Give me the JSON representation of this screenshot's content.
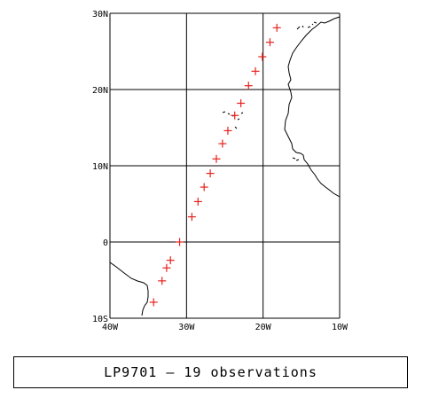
{
  "chart_data": {
    "type": "scatter",
    "marker": "plus",
    "marker_color": "#e8211d",
    "xlim": [
      -40,
      -10
    ],
    "ylim": [
      -10,
      30
    ],
    "x_ticks": [
      {
        "value": -40,
        "label": "40W"
      },
      {
        "value": -30,
        "label": "30W"
      },
      {
        "value": -20,
        "label": "20W"
      },
      {
        "value": -10,
        "label": "10W"
      }
    ],
    "y_ticks": [
      {
        "value": -10,
        "label": "10S"
      },
      {
        "value": 0,
        "label": "0"
      },
      {
        "value": 10,
        "label": "10N"
      },
      {
        "value": 20,
        "label": "20N"
      },
      {
        "value": 30,
        "label": "30N"
      }
    ],
    "grid": true,
    "points": [
      {
        "lon": -34.3,
        "lat": -7.9
      },
      {
        "lon": -33.2,
        "lat": -5.1
      },
      {
        "lon": -32.6,
        "lat": -3.4
      },
      {
        "lon": -32.1,
        "lat": -2.4
      },
      {
        "lon": -30.9,
        "lat": 0.0
      },
      {
        "lon": -29.3,
        "lat": 3.3
      },
      {
        "lon": -28.5,
        "lat": 5.3
      },
      {
        "lon": -27.7,
        "lat": 7.2
      },
      {
        "lon": -26.9,
        "lat": 9.0
      },
      {
        "lon": -26.1,
        "lat": 10.9
      },
      {
        "lon": -25.3,
        "lat": 12.9
      },
      {
        "lon": -24.6,
        "lat": 14.6
      },
      {
        "lon": -23.7,
        "lat": 16.6
      },
      {
        "lon": -22.9,
        "lat": 18.2
      },
      {
        "lon": -21.9,
        "lat": 20.5
      },
      {
        "lon": -21.0,
        "lat": 22.4
      },
      {
        "lon": -20.1,
        "lat": 24.3
      },
      {
        "lon": -19.1,
        "lat": 26.2
      },
      {
        "lon": -18.2,
        "lat": 28.1
      }
    ]
  },
  "caption": "LP9701 — 19 observations"
}
